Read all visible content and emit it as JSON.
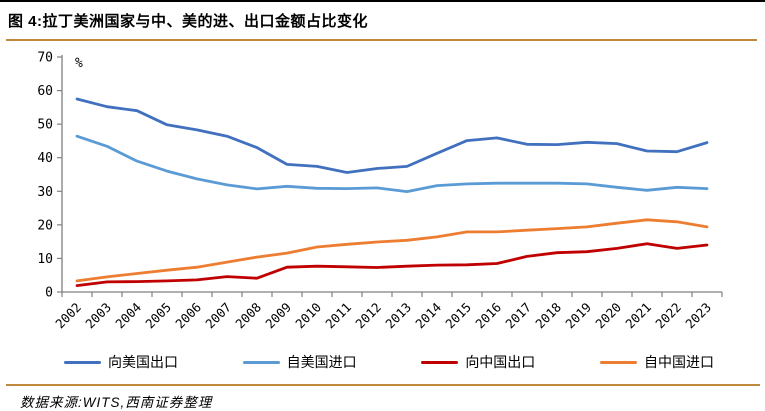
{
  "title": "图 4:拉丁美洲国家与中、美的进、出口金额占比变化",
  "footer": {
    "source": "数据来源:WITS,西南证券整理"
  },
  "accent_rule_color": "#C08A3E",
  "axis_color": "#808080",
  "chart_data": {
    "type": "line",
    "title": "图 4:拉丁美洲国家与中、美的进、出口金额占比变化",
    "xlabel": "",
    "ylabel": "%",
    "ylim": [
      0,
      70
    ],
    "y_ticks": [
      0,
      10,
      20,
      30,
      40,
      50,
      60,
      70
    ],
    "grid": false,
    "legend_position": "bottom",
    "categories": [
      "2002",
      "2003",
      "2004",
      "2005",
      "2006",
      "2007",
      "2008",
      "2009",
      "2010",
      "2011",
      "2012",
      "2013",
      "2014",
      "2015",
      "2016",
      "2017",
      "2018",
      "2019",
      "2020",
      "2021",
      "2022",
      "2023"
    ],
    "series": [
      {
        "name": "向美国出口",
        "color": "#4170BE",
        "values": [
          57.5,
          55.2,
          54.0,
          49.8,
          48.3,
          46.4,
          43.0,
          38.0,
          37.4,
          35.6,
          36.8,
          37.4,
          41.3,
          45.1,
          45.9,
          44.0,
          43.9,
          44.6,
          44.2,
          42.0,
          41.8,
          44.5
        ]
      },
      {
        "name": "自美国进口",
        "color": "#5B9BD5",
        "values": [
          46.4,
          43.4,
          39.0,
          36.0,
          33.7,
          31.9,
          30.7,
          31.5,
          30.9,
          30.8,
          31.0,
          29.9,
          31.7,
          32.2,
          32.4,
          32.4,
          32.4,
          32.2,
          31.2,
          30.3,
          31.2,
          30.8
        ]
      },
      {
        "name": "向中国出口",
        "color": "#C00000",
        "values": [
          1.9,
          3.0,
          3.1,
          3.3,
          3.6,
          4.6,
          4.1,
          7.4,
          7.7,
          7.5,
          7.3,
          7.7,
          8.0,
          8.1,
          8.5,
          10.6,
          11.7,
          12.0,
          13.0,
          14.4,
          13.0,
          14.0
        ]
      },
      {
        "name": "自中国进口",
        "color": "#ED7D31",
        "values": [
          3.3,
          4.5,
          5.5,
          6.5,
          7.4,
          8.9,
          10.4,
          11.6,
          13.4,
          14.2,
          14.9,
          15.4,
          16.4,
          17.9,
          17.9,
          18.4,
          18.9,
          19.4,
          20.5,
          21.5,
          20.9,
          19.4
        ]
      }
    ]
  }
}
